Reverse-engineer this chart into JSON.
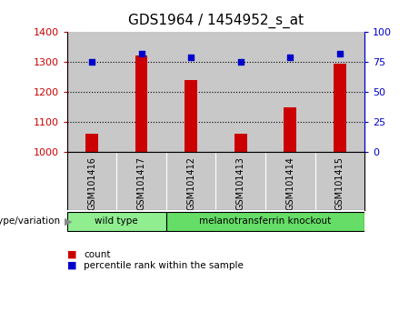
{
  "title": "GDS1964 / 1454952_s_at",
  "samples": [
    "GSM101416",
    "GSM101417",
    "GSM101412",
    "GSM101413",
    "GSM101414",
    "GSM101415"
  ],
  "counts": [
    1060,
    1322,
    1240,
    1060,
    1150,
    1295
  ],
  "percentiles": [
    75,
    82,
    79,
    75,
    79,
    82
  ],
  "ylim_left": [
    1000,
    1400
  ],
  "ylim_right": [
    0,
    100
  ],
  "yticks_left": [
    1000,
    1100,
    1200,
    1300,
    1400
  ],
  "yticks_right": [
    0,
    25,
    50,
    75,
    100
  ],
  "bar_color": "#cc0000",
  "dot_color": "#0000cc",
  "groups": [
    {
      "label": "wild type",
      "indices": [
        0,
        1
      ],
      "color": "#90ee90"
    },
    {
      "label": "melanotransferrin knockout",
      "indices": [
        2,
        3,
        4,
        5
      ],
      "color": "#66dd66"
    }
  ],
  "group_label": "genotype/variation",
  "legend_count": "count",
  "legend_percentile": "percentile rank within the sample",
  "tick_label_color_left": "#cc0000",
  "tick_label_color_right": "#0000cc",
  "col_bg_color": "#c8c8c8",
  "plot_bg": "#ffffff"
}
